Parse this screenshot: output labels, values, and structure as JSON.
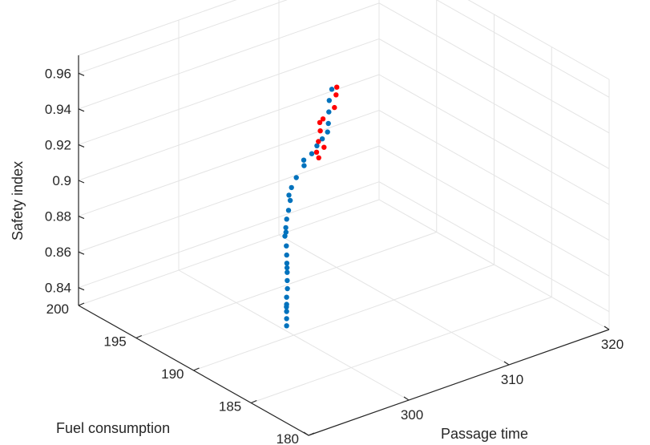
{
  "chart_data": {
    "type": "scatter3d",
    "title": "",
    "xlabel": "Passage time",
    "ylabel": "Fuel consumption",
    "zlabel": "Safety index",
    "xlim": [
      290,
      320
    ],
    "ylim": [
      180,
      200
    ],
    "zlim": [
      0.83,
      0.97
    ],
    "xticks": [
      "290",
      "300",
      "310",
      "320"
    ],
    "yticks": [
      "180",
      "185",
      "190",
      "195",
      "200"
    ],
    "zticks": [
      "0.84",
      "0.86",
      "0.88",
      "0.9",
      "0.92",
      "0.94",
      "0.96"
    ],
    "grid": true,
    "series": [
      {
        "color": "#0072BD",
        "points": [
          [
            296.3,
            187.4,
            0.852
          ],
          [
            296.3,
            187.4,
            0.856
          ],
          [
            296.3,
            187.4,
            0.86
          ],
          [
            296.3,
            187.4,
            0.864
          ],
          [
            296.3,
            187.4,
            0.868
          ],
          [
            296.5,
            187.5,
            0.872
          ],
          [
            296.6,
            187.6,
            0.876
          ],
          [
            296.7,
            187.7,
            0.88
          ],
          [
            296.9,
            187.9,
            0.884
          ],
          [
            297.0,
            188.0,
            0.888
          ],
          [
            297.2,
            188.2,
            0.892
          ],
          [
            297.4,
            188.5,
            0.896
          ],
          [
            297.6,
            188.6,
            0.9
          ],
          [
            297.8,
            188.7,
            0.904
          ],
          [
            298.1,
            188.8,
            0.908
          ],
          [
            298.5,
            189.0,
            0.912
          ],
          [
            299.2,
            189.5,
            0.916
          ],
          [
            299.8,
            189.6,
            0.92
          ],
          [
            300.8,
            189.8,
            0.924
          ],
          [
            301.8,
            190.0,
            0.928
          ],
          [
            302.2,
            189.9,
            0.932
          ],
          [
            302.5,
            189.7,
            0.936
          ],
          [
            302.8,
            189.5,
            0.94
          ],
          [
            303.0,
            189.6,
            0.944
          ],
          [
            303.5,
            190.0,
            0.948
          ],
          [
            304.0,
            190.4,
            0.952
          ],
          [
            304.6,
            190.7,
            0.956
          ],
          [
            296.4,
            187.5,
            0.862
          ],
          [
            296.8,
            187.8,
            0.882
          ],
          [
            297.5,
            188.5,
            0.898
          ],
          [
            298.6,
            189.2,
            0.914
          ],
          [
            301.0,
            190.0,
            0.926
          ]
        ]
      },
      {
        "color": "#FF0000",
        "points": [
          [
            300.9,
            188.8,
            0.935
          ],
          [
            301.2,
            188.9,
            0.94
          ],
          [
            301.5,
            189.0,
            0.945
          ],
          [
            302.0,
            189.2,
            0.95
          ],
          [
            301.8,
            189.3,
            0.948
          ],
          [
            301.0,
            188.7,
            0.932
          ],
          [
            302.0,
            188.2,
            0.96
          ],
          [
            302.5,
            188.5,
            0.965
          ],
          [
            302.8,
            188.7,
            0.968
          ],
          [
            301.3,
            188.5,
            0.938
          ]
        ]
      }
    ]
  }
}
